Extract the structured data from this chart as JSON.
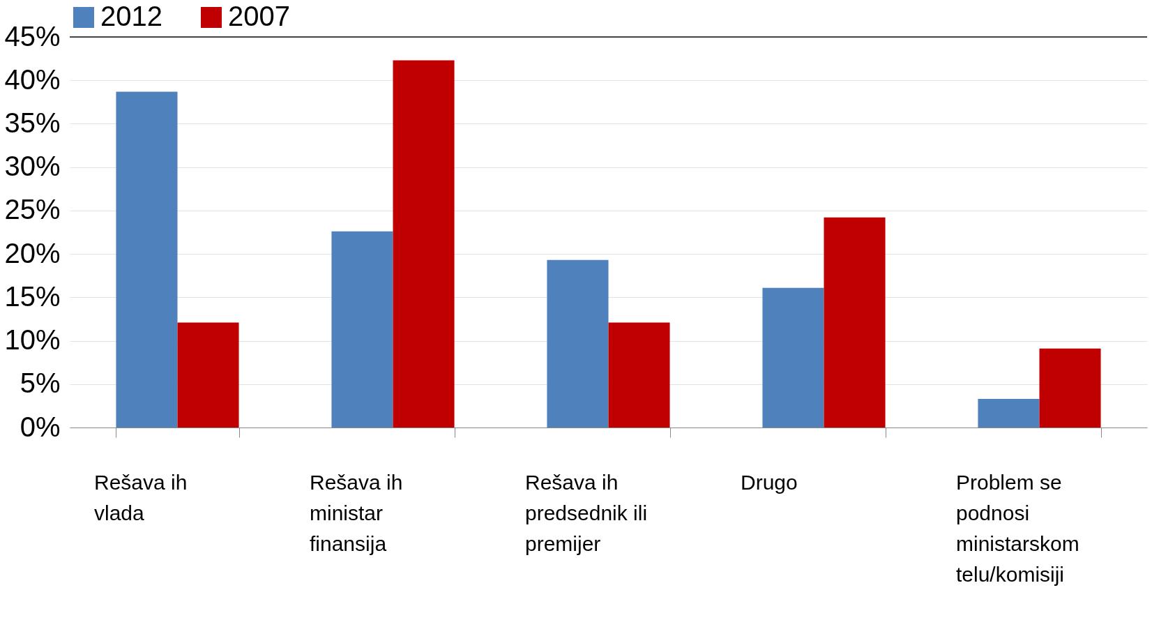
{
  "chart_data": {
    "type": "bar",
    "categories": [
      "Rešava ih vlada",
      "Rešava ih ministar finansija",
      "Rešava ih predsednik ili premijer",
      "Drugo",
      "Problem se podnosi ministarskom telu/komisiji"
    ],
    "series": [
      {
        "name": "2012",
        "color": "#4f81bd",
        "values": [
          38.7,
          22.6,
          19.3,
          16.1,
          3.3
        ]
      },
      {
        "name": "2007",
        "color": "#c00000",
        "values": [
          12.1,
          42.3,
          12.1,
          24.2,
          9.1
        ]
      }
    ],
    "ylim": [
      0,
      45
    ],
    "yticks": [
      {
        "value": 0,
        "label": "0%"
      },
      {
        "value": 5,
        "label": "5%"
      },
      {
        "value": 10,
        "label": "10%"
      },
      {
        "value": 15,
        "label": "15%"
      },
      {
        "value": 20,
        "label": "20%"
      },
      {
        "value": 25,
        "label": "25%"
      },
      {
        "value": 30,
        "label": "30%"
      },
      {
        "value": 35,
        "label": "35%"
      },
      {
        "value": 40,
        "label": "40%"
      },
      {
        "value": 45,
        "label": "45%"
      }
    ],
    "grid": "y",
    "legend": "top"
  }
}
